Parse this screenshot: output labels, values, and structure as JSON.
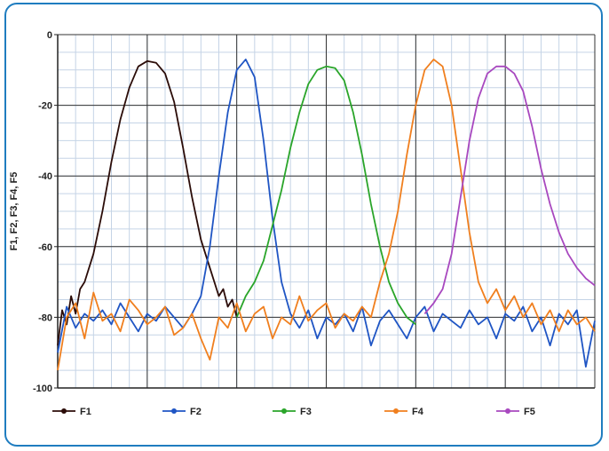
{
  "chart_data": {
    "type": "line",
    "title": "",
    "xlabel": "",
    "ylabel": "F1, F2, F3, F4, F5",
    "ylim": [
      -100,
      0
    ],
    "yticks": [
      0,
      -20,
      -40,
      -60,
      -80,
      -100
    ],
    "xlim": [
      0,
      60
    ],
    "grid": true,
    "legend_position": "bottom",
    "x_label_text": "",
    "series": [
      {
        "name": "F1",
        "color": "#2b0c08",
        "x": [
          0,
          0.5,
          1,
          1.5,
          2,
          2.5,
          3,
          4,
          5,
          6,
          7,
          8,
          9,
          10,
          11,
          12,
          13,
          14,
          15,
          16,
          17,
          18,
          18.5,
          19,
          19.5,
          20
        ],
        "y": [
          -88,
          -78,
          -82,
          -74,
          -79,
          -72,
          -70,
          -62,
          -50,
          -36,
          -24,
          -15,
          -9,
          -7.5,
          -8,
          -11,
          -19,
          -32,
          -46,
          -58,
          -66,
          -74,
          -72,
          -77,
          -75,
          -80
        ]
      },
      {
        "name": "F2",
        "color": "#1f55c4",
        "x": [
          0,
          1,
          2,
          3,
          4,
          5,
          6,
          7,
          8,
          9,
          10,
          11,
          12,
          13,
          14,
          15,
          16,
          17,
          18,
          19,
          20,
          21,
          22,
          23,
          24,
          25,
          26,
          27,
          28,
          29,
          30,
          31,
          32,
          33,
          34,
          35,
          36,
          37,
          38,
          39,
          40,
          41,
          42,
          43,
          44,
          45,
          46,
          47,
          48,
          49,
          50,
          51,
          52,
          53,
          54,
          55,
          56,
          57,
          58,
          59,
          60
        ],
        "y": [
          -90,
          -77,
          -83,
          -79,
          -81,
          -78,
          -82,
          -76,
          -80,
          -84,
          -79,
          -81,
          -77,
          -80,
          -83,
          -79,
          -74,
          -60,
          -40,
          -22,
          -10,
          -7,
          -12,
          -30,
          -52,
          -70,
          -79,
          -83,
          -78,
          -86,
          -80,
          -82,
          -79,
          -84,
          -77,
          -88,
          -81,
          -78,
          -82,
          -86,
          -80,
          -77,
          -84,
          -79,
          -81,
          -83,
          -78,
          -82,
          -80,
          -86,
          -79,
          -81,
          -77,
          -84,
          -80,
          -88,
          -79,
          -82,
          -78,
          -94,
          -81
        ]
      },
      {
        "name": "F3",
        "color": "#2aa52a",
        "x": [
          20,
          21,
          22,
          23,
          24,
          25,
          26,
          27,
          28,
          29,
          30,
          31,
          32,
          33,
          34,
          35,
          36,
          37,
          38,
          39,
          40
        ],
        "y": [
          -80,
          -74,
          -70,
          -64,
          -54,
          -44,
          -32,
          -22,
          -14,
          -10,
          -9,
          -9.5,
          -13,
          -22,
          -34,
          -48,
          -60,
          -70,
          -76,
          -80,
          -82
        ]
      },
      {
        "name": "F4",
        "color": "#f07f1e",
        "x": [
          0,
          1,
          2,
          3,
          4,
          5,
          6,
          7,
          8,
          9,
          10,
          11,
          12,
          13,
          14,
          15,
          16,
          17,
          18,
          19,
          20,
          21,
          22,
          23,
          24,
          25,
          26,
          27,
          28,
          29,
          30,
          31,
          32,
          33,
          34,
          35,
          36,
          37,
          38,
          39,
          40,
          41,
          42,
          43,
          44,
          45,
          46,
          47,
          48,
          49,
          50,
          51,
          52,
          53,
          54,
          55,
          56,
          57,
          58,
          59,
          60
        ],
        "y": [
          -95,
          -80,
          -76,
          -86,
          -73,
          -81,
          -79,
          -84,
          -75,
          -78,
          -82,
          -80,
          -77,
          -85,
          -83,
          -79,
          -86,
          -92,
          -80,
          -83,
          -76,
          -84,
          -79,
          -77,
          -86,
          -80,
          -82,
          -74,
          -81,
          -78,
          -76,
          -83,
          -79,
          -81,
          -77,
          -80,
          -70,
          -62,
          -50,
          -34,
          -20,
          -10,
          -7,
          -9,
          -20,
          -38,
          -56,
          -70,
          -76,
          -72,
          -78,
          -74,
          -80,
          -76,
          -82,
          -78,
          -84,
          -78,
          -82,
          -80,
          -84
        ]
      },
      {
        "name": "F5",
        "color": "#a848bf",
        "x": [
          41,
          42,
          43,
          44,
          45,
          46,
          47,
          48,
          49,
          50,
          51,
          52,
          53,
          54,
          55,
          56,
          57,
          58,
          59,
          60
        ],
        "y": [
          -79,
          -76,
          -72,
          -62,
          -46,
          -30,
          -18,
          -11,
          -9,
          -9,
          -11,
          -16,
          -26,
          -38,
          -48,
          -56,
          -62,
          -66,
          -69,
          -71
        ]
      }
    ]
  }
}
